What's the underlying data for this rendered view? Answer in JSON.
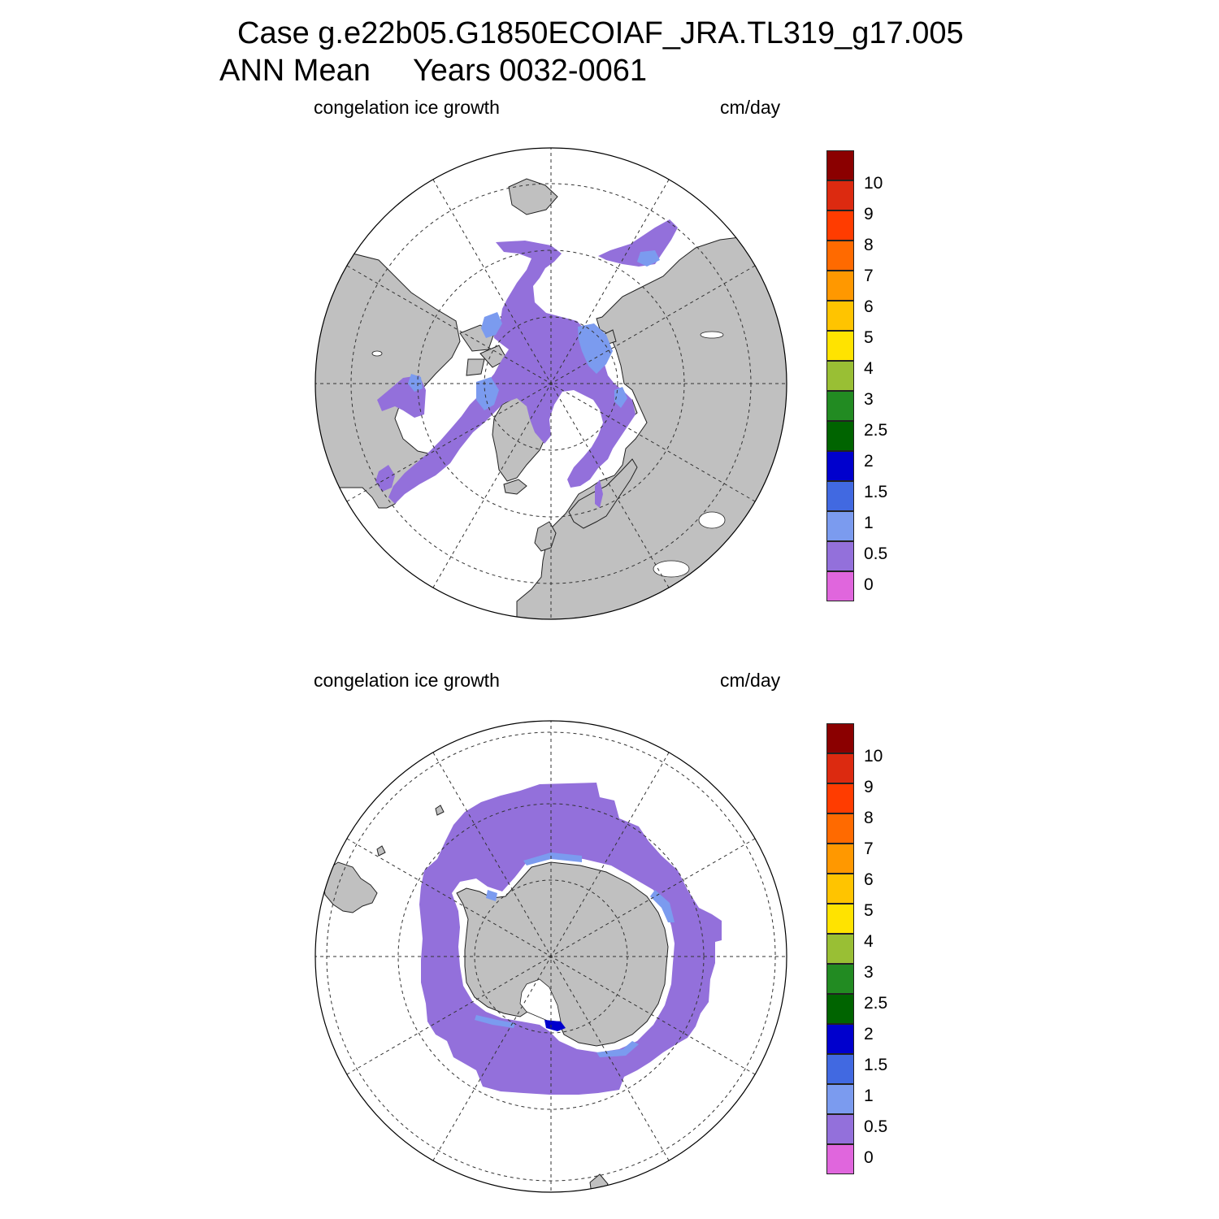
{
  "title": {
    "line1": "Case g.e22b05.G1850ECOIAF_JRA.TL319_g17.005",
    "line2": "ANN Mean     Years 0032-0061"
  },
  "panels": [
    {
      "id": "nh",
      "hemisphere": "north",
      "variable": "congelation ice growth",
      "units": "cm/day"
    },
    {
      "id": "sh",
      "hemisphere": "south",
      "variable": "congelation ice growth",
      "units": "cm/day"
    }
  ],
  "colorbar": {
    "labels": [
      "10",
      "9",
      "8",
      "7",
      "6",
      "5",
      "4",
      "3",
      "2.5",
      "2",
      "1.5",
      "1",
      "0.5",
      "0"
    ],
    "colors": [
      "#8b0000",
      "#dc2a10",
      "#ff3c00",
      "#ff6a00",
      "#ff9800",
      "#ffc400",
      "#ffe300",
      "#99bf34",
      "#228b22",
      "#006400",
      "#0000cd",
      "#4169e1",
      "#7b9bef",
      "#9370db",
      "#e066dd"
    ]
  },
  "colors": {
    "land": "#c0c0c0",
    "ice_growth_low": "#9370db",
    "ice_growth_mid": "#7b9bef",
    "ice_growth_high": "#0000cd"
  }
}
